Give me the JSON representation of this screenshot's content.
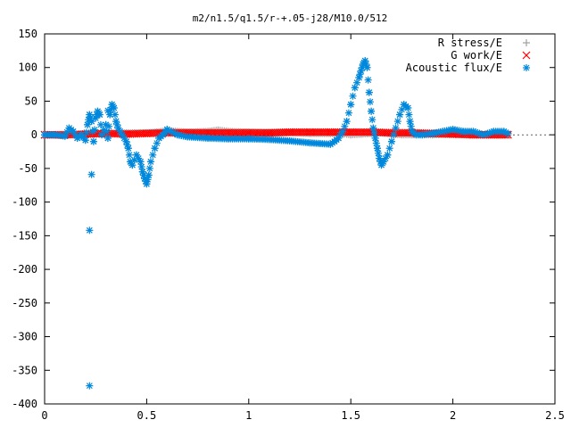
{
  "chart_data": {
    "type": "scatter",
    "title": "m2/n1.5/q1.5/r-+.05-j28/M10.0/512",
    "xlabel": "",
    "ylabel": "",
    "xlim": [
      0,
      2.5
    ],
    "ylim": [
      -400,
      150
    ],
    "x_ticks": [
      "0",
      "0.5",
      "1",
      "1.5",
      "2",
      "2.5"
    ],
    "y_ticks": [
      "150",
      "100",
      "50",
      "0",
      "-50",
      "-100",
      "-150",
      "-200",
      "-250",
      "-300",
      "-350",
      "-400"
    ],
    "x_tick_values": [
      0,
      0.5,
      1,
      1.5,
      2,
      2.5
    ],
    "y_tick_values": [
      150,
      100,
      50,
      0,
      -50,
      -100,
      -150,
      -200,
      -250,
      -300,
      -350,
      -400
    ],
    "grid": false,
    "legend_position": "top-right",
    "series": [
      {
        "name": "R stress/E",
        "marker": "plus",
        "color": "#a0a0a0",
        "x": [
          0.0,
          0.1,
          0.2,
          0.3,
          0.4,
          0.5,
          0.55,
          0.6,
          0.7,
          0.8,
          0.85,
          0.9,
          1.0,
          1.1,
          1.2,
          1.3,
          1.4,
          1.45,
          1.5,
          1.55,
          1.6,
          1.65,
          1.7,
          1.75,
          1.8,
          1.9,
          2.0,
          2.1,
          2.2,
          2.27
        ],
        "y": [
          0,
          0,
          1,
          2,
          3,
          3,
          4,
          6,
          4,
          5,
          7,
          5,
          4,
          3,
          3,
          2,
          2,
          2,
          0,
          1,
          2,
          3,
          1,
          0,
          0,
          0,
          1,
          0,
          0,
          0
        ]
      },
      {
        "name": "G work/E",
        "marker": "cross",
        "color": "#ff0000",
        "x": [
          0.0,
          0.1,
          0.2,
          0.3,
          0.4,
          0.5,
          0.6,
          0.7,
          0.8,
          0.9,
          1.0,
          1.1,
          1.2,
          1.3,
          1.4,
          1.5,
          1.6,
          1.7,
          1.8,
          1.9,
          2.0,
          2.1,
          2.2,
          2.27
        ],
        "y": [
          0,
          0,
          1,
          2,
          1,
          2,
          3,
          3,
          3,
          3,
          3,
          3,
          4,
          4,
          4,
          4,
          4,
          3,
          3,
          2,
          1,
          0,
          0,
          0
        ]
      },
      {
        "name": "Acoustic flux/E",
        "marker": "star",
        "color": "#0088dd",
        "x": [
          0.0,
          0.05,
          0.1,
          0.12,
          0.14,
          0.16,
          0.18,
          0.2,
          0.21,
          0.22,
          0.23,
          0.24,
          0.25,
          0.26,
          0.27,
          0.28,
          0.3,
          0.31,
          0.32,
          0.33,
          0.34,
          0.35,
          0.36,
          0.38,
          0.4,
          0.41,
          0.42,
          0.43,
          0.45,
          0.47,
          0.48,
          0.49,
          0.5,
          0.51,
          0.52,
          0.54,
          0.56,
          0.58,
          0.6,
          0.62,
          0.65,
          0.7,
          0.8,
          0.9,
          1.0,
          1.1,
          1.2,
          1.3,
          1.35,
          1.4,
          1.42,
          1.44,
          1.46,
          1.48,
          1.5,
          1.52,
          1.54,
          1.55,
          1.56,
          1.57,
          1.58,
          1.59,
          1.6,
          1.61,
          1.62,
          1.63,
          1.64,
          1.65,
          1.66,
          1.68,
          1.7,
          1.72,
          1.74,
          1.76,
          1.78,
          1.79,
          1.8,
          1.82,
          1.85,
          1.9,
          1.95,
          2.0,
          2.05,
          2.1,
          2.15,
          2.2,
          2.25,
          2.27,
          0.22,
          0.22,
          0.23,
          0.31
        ],
        "y": [
          0,
          0,
          -2,
          10,
          5,
          -5,
          0,
          -8,
          15,
          30,
          20,
          -10,
          25,
          35,
          30,
          0,
          15,
          -5,
          30,
          45,
          40,
          20,
          10,
          0,
          -10,
          -20,
          -40,
          -45,
          -30,
          -40,
          -55,
          -65,
          -73,
          -60,
          -40,
          -20,
          -5,
          0,
          8,
          5,
          0,
          -3,
          -5,
          -6,
          -6,
          -7,
          -9,
          -12,
          -13,
          -14,
          -10,
          -5,
          5,
          20,
          45,
          70,
          85,
          95,
          105,
          110,
          100,
          63,
          35,
          10,
          -5,
          -20,
          -35,
          -45,
          -40,
          -30,
          -10,
          10,
          30,
          45,
          40,
          20,
          5,
          0,
          0,
          2,
          5,
          8,
          5,
          5,
          0,
          5,
          5,
          2,
          -142,
          -373,
          -59,
          36
        ]
      }
    ]
  }
}
